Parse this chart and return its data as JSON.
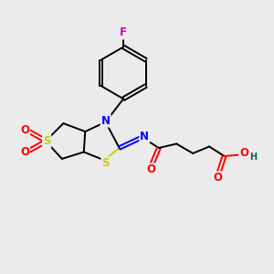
{
  "bg_color": "#ebebeb",
  "atom_colors": {
    "C": "#000000",
    "N": "#0000ff",
    "O": "#ff0000",
    "S": "#cccc00",
    "F": "#cc00cc",
    "H": "#006666"
  },
  "fig_size": [
    3.0,
    3.0
  ],
  "dpi": 100
}
